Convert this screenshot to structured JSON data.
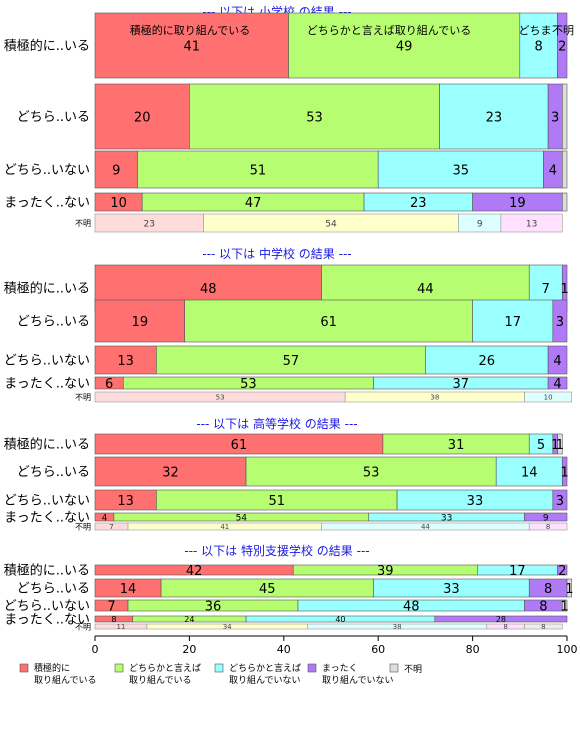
{
  "chart_data": {
    "type": "bar",
    "stacked": true,
    "orientation": "horizontal",
    "normalized_percent": true,
    "xlim": [
      0,
      100
    ],
    "x_ticks": [
      "0",
      "20",
      "40",
      "60",
      "80",
      "100"
    ],
    "grid": false,
    "legend_position": "bottom",
    "colors": [
      "#ff7070",
      "#b6fd71",
      "#99ffff",
      "#b07af6",
      "#dddddd"
    ],
    "series": [
      {
        "name": "積極的に\n取り組んでいる"
      },
      {
        "name": "どちらかと言えば\n取り組んでいる"
      },
      {
        "name": "どちらかと言えば\n取り組んでいない"
      },
      {
        "name": "まったく\n取り組んでいない"
      },
      {
        "name": "不明"
      }
    ],
    "top_column_labels": [
      "積極的に取り組んでいる",
      "どちらかと言えば取り組んでいる",
      "どちま",
      "不明"
    ],
    "panels": [
      {
        "title": "--- 以下は 小学校 の結果 ---",
        "rows": [
          {
            "label": "積極的に..いる",
            "values": [
              41,
              49,
              8,
              2,
              0
            ],
            "labels": [
              "41",
              "49",
              "8",
              "2",
              ""
            ]
          },
          {
            "label": "どちら..いる",
            "values": [
              20,
              53,
              23,
              3,
              1
            ],
            "labels": [
              "20",
              "53",
              "23",
              "3",
              ""
            ]
          },
          {
            "label": "どちら..いない",
            "values": [
              9,
              51,
              35,
              4,
              1
            ],
            "labels": [
              "9",
              "51",
              "35",
              "4",
              ""
            ]
          },
          {
            "label": "まったく..ない",
            "values": [
              10,
              47,
              23,
              19,
              1
            ],
            "labels": [
              "10",
              "47",
              "23",
              "19",
              ""
            ]
          }
        ],
        "unknown": {
          "label": "不明",
          "values": [
            23,
            54,
            9,
            13
          ],
          "labels": [
            "23",
            "54",
            "9",
            "13"
          ]
        }
      },
      {
        "title": "--- 以下は 中学校 の結果 ---",
        "rows": [
          {
            "label": "積極的に..いる",
            "values": [
              48,
              44,
              7,
              1,
              0
            ],
            "labels": [
              "48",
              "44",
              "7",
              "1",
              ""
            ]
          },
          {
            "label": "どちら..いる",
            "values": [
              19,
              61,
              17,
              3,
              0
            ],
            "labels": [
              "19",
              "61",
              "17",
              "3",
              ""
            ]
          },
          {
            "label": "どちら..いない",
            "values": [
              13,
              57,
              26,
              4,
              0
            ],
            "labels": [
              "13",
              "57",
              "26",
              "4",
              ""
            ]
          },
          {
            "label": "まったく..ない",
            "values": [
              6,
              53,
              37,
              4,
              0
            ],
            "labels": [
              "6",
              "53",
              "37",
              "4",
              ""
            ]
          }
        ],
        "unknown": {
          "label": "不明",
          "values": [
            53,
            38,
            10,
            0
          ],
          "labels": [
            "53",
            "38",
            "10",
            ""
          ]
        }
      },
      {
        "title": "--- 以下は 高等学校 の結果 ---",
        "rows": [
          {
            "label": "積極的に..いる",
            "values": [
              61,
              31,
              5,
              1,
              1
            ],
            "labels": [
              "61",
              "31",
              "5",
              "1",
              "1"
            ]
          },
          {
            "label": "どちら..いる",
            "values": [
              32,
              53,
              14,
              1,
              0
            ],
            "labels": [
              "32",
              "53",
              "14",
              "1",
              ""
            ]
          },
          {
            "label": "どちら..いない",
            "values": [
              13,
              51,
              33,
              3,
              0
            ],
            "labels": [
              "13",
              "51",
              "33",
              "3",
              ""
            ]
          },
          {
            "label": "まったく..ない",
            "values": [
              4,
              54,
              33,
              9,
              0
            ],
            "labels": [
              "4",
              "54",
              "33",
              "9",
              ""
            ]
          }
        ],
        "unknown": {
          "label": "不明",
          "values": [
            7,
            41,
            44,
            8
          ],
          "labels": [
            "7",
            "41",
            "44",
            "8"
          ]
        }
      },
      {
        "title": "--- 以下は 特別支援学校 の結果 ---",
        "rows": [
          {
            "label": "積極的に..いる",
            "values": [
              42,
              39,
              17,
              2,
              0
            ],
            "labels": [
              "42",
              "39",
              "17",
              "2",
              ""
            ]
          },
          {
            "label": "どちら..いる",
            "values": [
              14,
              45,
              33,
              8,
              1
            ],
            "labels": [
              "14",
              "45",
              "33",
              "8",
              "1"
            ]
          },
          {
            "label": "どちら..いない",
            "values": [
              7,
              36,
              48,
              8,
              1
            ],
            "labels": [
              "7",
              "36",
              "48",
              "8",
              "1"
            ]
          },
          {
            "label": "まったく..ない",
            "values": [
              8,
              24,
              40,
              28,
              0
            ],
            "labels": [
              "8",
              "24",
              "40",
              "28",
              ""
            ]
          }
        ],
        "unknown": {
          "label": "不明",
          "values": [
            11,
            34,
            38,
            8,
            8
          ],
          "labels": [
            "11",
            "34",
            "38",
            "8",
            "8"
          ]
        }
      }
    ]
  }
}
